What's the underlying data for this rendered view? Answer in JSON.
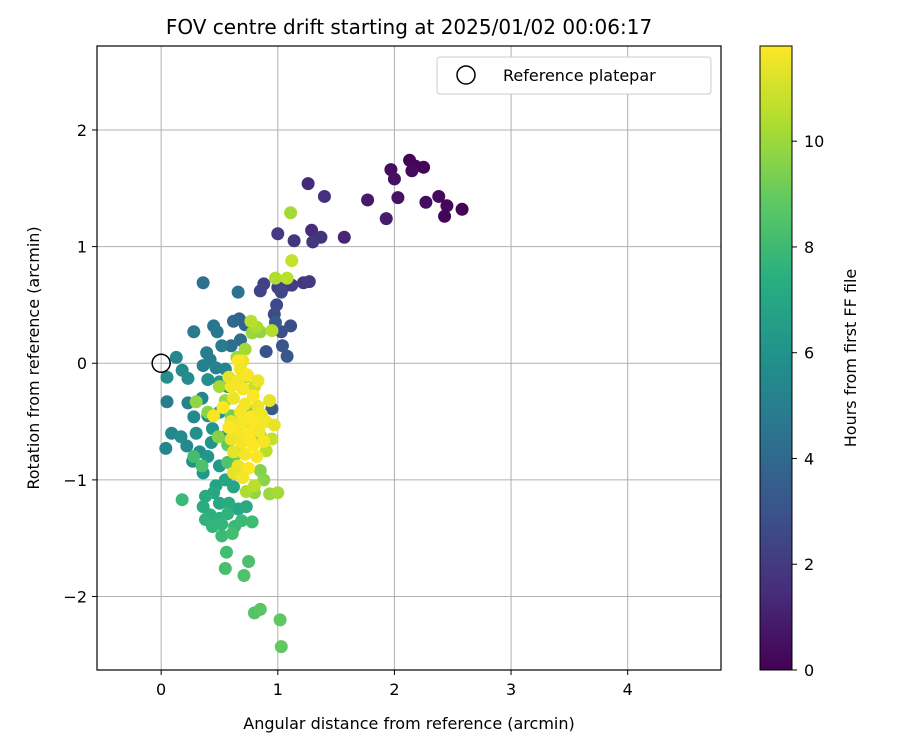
{
  "chart_data": {
    "type": "scatter",
    "title": "FOV centre drift starting at 2025/01/02 00:06:17",
    "xlabel": "Angular distance from reference (arcmin)",
    "ylabel": "Rotation from reference (arcmin)",
    "xlim": [
      -0.55,
      4.8
    ],
    "ylim": [
      -2.63,
      2.72
    ],
    "xticks": [
      0,
      1,
      2,
      3,
      4
    ],
    "yticks": [
      -2,
      -1,
      0,
      1,
      2
    ],
    "xtick_labels": [
      "0",
      "1",
      "2",
      "3",
      "4"
    ],
    "ytick_labels": [
      "−2",
      "−1",
      "0",
      "1",
      "2"
    ],
    "grid": true,
    "colormap": "viridis",
    "colorbar": {
      "label": "Hours from first FF file",
      "min": 0,
      "max": 11.8,
      "ticks": [
        0,
        2,
        4,
        6,
        8,
        10
      ],
      "tick_labels": [
        "0",
        "2",
        "4",
        "6",
        "8",
        "10"
      ]
    },
    "legend": {
      "position": "top-right",
      "entries": [
        {
          "label": "Reference platepar",
          "marker": "open-circle",
          "color": "#000000"
        }
      ]
    },
    "reference_point": {
      "x": 0,
      "y": 0
    },
    "series": [
      {
        "marker": "filled-circle",
        "points": [
          [
            2.13,
            1.74,
            0.1
          ],
          [
            2.18,
            1.69,
            0.2
          ],
          [
            2.25,
            1.68,
            0.1
          ],
          [
            2.15,
            1.65,
            0.3
          ],
          [
            1.97,
            1.66,
            0.4
          ],
          [
            2.0,
            1.58,
            0.5
          ],
          [
            2.38,
            1.43,
            0.3
          ],
          [
            2.45,
            1.35,
            0.2
          ],
          [
            2.58,
            1.32,
            0.1
          ],
          [
            2.27,
            1.38,
            0.4
          ],
          [
            2.03,
            1.42,
            0.6
          ],
          [
            2.43,
            1.26,
            0.1
          ],
          [
            1.77,
            1.4,
            0.8
          ],
          [
            1.93,
            1.24,
            0.9
          ],
          [
            1.26,
            1.54,
            1.4
          ],
          [
            1.4,
            1.43,
            1.6
          ],
          [
            1.57,
            1.08,
            1.2
          ],
          [
            1.29,
            1.14,
            1.5
          ],
          [
            1.37,
            1.08,
            1.7
          ],
          [
            1.14,
            1.05,
            1.8
          ],
          [
            1.3,
            1.04,
            1.9
          ],
          [
            1.0,
            1.11,
            2.0
          ],
          [
            1.22,
            0.69,
            1.9
          ],
          [
            1.27,
            0.7,
            2.0
          ],
          [
            1.08,
            0.67,
            2.1
          ],
          [
            1.12,
            0.67,
            2.2
          ],
          [
            0.88,
            0.68,
            2.3
          ],
          [
            1.0,
            0.65,
            2.3
          ],
          [
            0.85,
            0.62,
            2.4
          ],
          [
            1.03,
            0.61,
            2.5
          ],
          [
            0.99,
            0.5,
            2.6
          ],
          [
            0.97,
            0.42,
            2.7
          ],
          [
            1.11,
            0.32,
            2.8
          ],
          [
            1.03,
            0.27,
            2.9
          ],
          [
            0.9,
            0.1,
            3.0
          ],
          [
            1.04,
            0.15,
            3.1
          ],
          [
            1.08,
            0.06,
            3.2
          ],
          [
            0.98,
            0.35,
            3.3
          ],
          [
            0.95,
            -0.39,
            3.4
          ],
          [
            0.67,
            0.38,
            3.6
          ],
          [
            0.72,
            0.33,
            3.8
          ],
          [
            0.77,
            0.31,
            3.9
          ],
          [
            0.62,
            0.36,
            4.0
          ],
          [
            0.68,
            0.2,
            4.2
          ],
          [
            0.6,
            0.15,
            4.3
          ],
          [
            0.36,
            0.69,
            4.4
          ],
          [
            0.66,
            0.61,
            4.5
          ],
          [
            0.45,
            0.32,
            4.6
          ],
          [
            0.48,
            0.27,
            4.7
          ],
          [
            0.28,
            0.27,
            4.8
          ],
          [
            0.52,
            0.15,
            4.9
          ],
          [
            0.39,
            0.09,
            5.0
          ],
          [
            0.42,
            0.03,
            5.1
          ],
          [
            0.36,
            -0.02,
            5.2
          ],
          [
            0.47,
            -0.04,
            5.3
          ],
          [
            0.55,
            -0.05,
            5.4
          ],
          [
            0.13,
            0.05,
            5.5
          ],
          [
            0.18,
            -0.06,
            5.6
          ],
          [
            0.23,
            -0.13,
            5.7
          ],
          [
            0.05,
            -0.12,
            5.8
          ],
          [
            0.4,
            -0.14,
            5.9
          ],
          [
            0.5,
            -0.16,
            6.0
          ],
          [
            0.57,
            -0.2,
            6.1
          ],
          [
            0.05,
            -0.33,
            5.0
          ],
          [
            0.23,
            -0.34,
            5.2
          ],
          [
            0.35,
            -0.3,
            5.4
          ],
          [
            0.28,
            -0.46,
            5.6
          ],
          [
            0.4,
            -0.45,
            5.8
          ],
          [
            0.5,
            -0.42,
            6.0
          ],
          [
            0.6,
            -0.5,
            6.2
          ],
          [
            0.09,
            -0.6,
            5.5
          ],
          [
            0.17,
            -0.63,
            5.7
          ],
          [
            0.3,
            -0.6,
            5.9
          ],
          [
            0.44,
            -0.56,
            6.1
          ],
          [
            0.04,
            -0.73,
            5.4
          ],
          [
            0.22,
            -0.71,
            5.6
          ],
          [
            0.33,
            -0.76,
            5.8
          ],
          [
            0.43,
            -0.68,
            6.0
          ],
          [
            0.55,
            -0.63,
            6.2
          ],
          [
            0.27,
            -0.84,
            6.0
          ],
          [
            0.4,
            -0.8,
            6.2
          ],
          [
            0.5,
            -0.88,
            6.4
          ],
          [
            0.36,
            -0.94,
            6.3
          ],
          [
            0.47,
            -1.05,
            6.8
          ],
          [
            0.55,
            -1.0,
            6.9
          ],
          [
            0.62,
            -1.06,
            7.0
          ],
          [
            0.45,
            -1.11,
            7.1
          ],
          [
            0.38,
            -1.14,
            7.2
          ],
          [
            0.5,
            -1.2,
            7.0
          ],
          [
            0.58,
            -1.2,
            7.3
          ],
          [
            0.66,
            -1.25,
            7.1
          ],
          [
            0.73,
            -1.23,
            7.2
          ],
          [
            0.36,
            -1.23,
            7.3
          ],
          [
            0.42,
            -1.3,
            7.4
          ],
          [
            0.5,
            -1.33,
            7.5
          ],
          [
            0.57,
            -1.29,
            7.6
          ],
          [
            0.38,
            -1.34,
            7.6
          ],
          [
            0.44,
            -1.4,
            7.7
          ],
          [
            0.52,
            -1.38,
            7.8
          ],
          [
            0.63,
            -1.4,
            7.9
          ],
          [
            0.69,
            -1.35,
            8.0
          ],
          [
            0.78,
            -1.36,
            8.1
          ],
          [
            0.52,
            -1.48,
            8.0
          ],
          [
            0.61,
            -1.46,
            8.2
          ],
          [
            0.18,
            -1.17,
            8.0
          ],
          [
            0.56,
            -1.62,
            8.2
          ],
          [
            0.55,
            -1.76,
            8.3
          ],
          [
            0.75,
            -1.7,
            8.4
          ],
          [
            0.71,
            -1.82,
            8.5
          ],
          [
            0.8,
            -2.14,
            8.6
          ],
          [
            0.85,
            -2.11,
            8.7
          ],
          [
            1.02,
            -2.2,
            8.8
          ],
          [
            1.03,
            -2.43,
            8.9
          ],
          [
            0.28,
            -0.8,
            8.2
          ],
          [
            0.35,
            -0.88,
            8.4
          ],
          [
            0.57,
            -0.85,
            8.6
          ],
          [
            0.64,
            -0.78,
            8.8
          ],
          [
            0.57,
            -0.7,
            9.0
          ],
          [
            0.65,
            -0.58,
            9.2
          ],
          [
            0.6,
            -0.45,
            9.3
          ],
          [
            0.7,
            -0.4,
            9.4
          ],
          [
            0.8,
            -0.4,
            9.5
          ],
          [
            0.49,
            -0.63,
            9.6
          ],
          [
            0.4,
            -0.42,
            9.7
          ],
          [
            0.3,
            -0.33,
            9.8
          ],
          [
            0.85,
            -0.92,
            9.6
          ],
          [
            0.88,
            -1.0,
            9.7
          ],
          [
            0.8,
            -1.11,
            9.8
          ],
          [
            0.93,
            -1.12,
            10.0
          ],
          [
            1.0,
            -1.11,
            10.2
          ],
          [
            0.73,
            -1.1,
            10.4
          ],
          [
            0.8,
            -1.05,
            10.6
          ],
          [
            0.75,
            -0.56,
            10.0
          ],
          [
            0.85,
            -0.62,
            10.2
          ],
          [
            0.67,
            -0.76,
            10.4
          ],
          [
            0.9,
            -0.75,
            10.6
          ],
          [
            0.95,
            -0.65,
            10.8
          ],
          [
            0.55,
            -0.32,
            10.0
          ],
          [
            0.5,
            -0.2,
            10.2
          ],
          [
            0.63,
            -0.18,
            10.4
          ],
          [
            0.72,
            -0.12,
            10.6
          ],
          [
            0.8,
            -0.2,
            10.8
          ],
          [
            0.65,
            0.05,
            10.0
          ],
          [
            0.72,
            0.12,
            10.2
          ],
          [
            0.78,
            0.26,
            10.0
          ],
          [
            0.85,
            0.27,
            9.8
          ],
          [
            0.82,
            0.31,
            10.3
          ],
          [
            0.95,
            0.28,
            10.5
          ],
          [
            0.98,
            0.73,
            10.4
          ],
          [
            1.08,
            0.73,
            10.6
          ],
          [
            1.12,
            0.88,
            10.8
          ],
          [
            1.11,
            1.29,
            10.2
          ],
          [
            0.77,
            0.36,
            10.6
          ],
          [
            0.58,
            -0.12,
            11.4
          ],
          [
            0.66,
            -0.15,
            11.6
          ],
          [
            0.7,
            -0.22,
            11.7
          ],
          [
            0.62,
            -0.3,
            11.5
          ],
          [
            0.72,
            -0.35,
            11.6
          ],
          [
            0.79,
            -0.28,
            11.8
          ],
          [
            0.83,
            -0.37,
            11.5
          ],
          [
            0.68,
            -0.42,
            11.7
          ],
          [
            0.77,
            -0.46,
            11.8
          ],
          [
            0.86,
            -0.44,
            11.6
          ],
          [
            0.6,
            -0.5,
            11.5
          ],
          [
            0.7,
            -0.5,
            11.7
          ],
          [
            0.8,
            -0.52,
            11.8
          ],
          [
            0.9,
            -0.5,
            11.6
          ],
          [
            0.97,
            -0.53,
            11.4
          ],
          [
            0.65,
            -0.58,
            11.7
          ],
          [
            0.74,
            -0.6,
            11.8
          ],
          [
            0.84,
            -0.58,
            11.6
          ],
          [
            0.6,
            -0.65,
            11.5
          ],
          [
            0.69,
            -0.68,
            11.6
          ],
          [
            0.79,
            -0.7,
            11.8
          ],
          [
            0.88,
            -0.67,
            11.7
          ],
          [
            0.62,
            -0.76,
            11.4
          ],
          [
            0.72,
            -0.78,
            11.6
          ],
          [
            0.82,
            -0.8,
            11.7
          ],
          [
            0.66,
            -0.88,
            11.5
          ],
          [
            0.75,
            -0.9,
            11.8
          ],
          [
            0.62,
            -0.94,
            11.4
          ],
          [
            0.7,
            -0.98,
            11.6
          ],
          [
            0.7,
            0.02,
            11.5
          ],
          [
            0.66,
            0.02,
            11.8
          ],
          [
            0.68,
            -0.05,
            11.6
          ],
          [
            0.74,
            -0.1,
            11.7
          ],
          [
            0.6,
            -0.2,
            11.6
          ],
          [
            0.53,
            -0.38,
            11.8
          ],
          [
            0.45,
            -0.45,
            11.7
          ],
          [
            0.83,
            -0.15,
            11.5
          ],
          [
            0.93,
            -0.32,
            11.4
          ],
          [
            0.58,
            -0.55,
            11.8
          ],
          [
            0.76,
            -0.66,
            11.8
          ]
        ]
      }
    ]
  }
}
